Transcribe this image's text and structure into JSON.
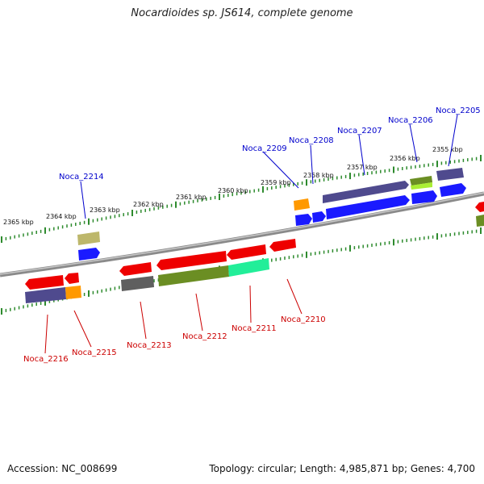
{
  "title": "Nocardioides sp. JS614, complete genome",
  "footer": {
    "accession": "Accession: NC_008699",
    "summary": "Topology: circular; Length: 4,985,871 bp; Genes: 4,700"
  },
  "colors": {
    "background": "#ffffff",
    "backbone": "#8a8a8a",
    "tick": "#2e8b2e",
    "label_forward": "#0000cc",
    "label_reverse": "#cc0000",
    "gene_red": "#ee0000",
    "gene_blue": "#1a1aff",
    "gene_orange": "#ff9900",
    "gene_slate": "#4f4a8e",
    "gene_olive": "#6b8e23",
    "gene_gray": "#5f5f5f",
    "gene_khaki": "#bdb76b",
    "gene_teal": "#22ee99",
    "gene_lime": "#aaee33"
  },
  "kbp_labels": [
    "2355 kbp",
    "2356 kbp",
    "2357 kbp",
    "2358 kbp",
    "2359 kbp",
    "2360 kbp",
    "2361 kbp",
    "2362 kbp",
    "2363 kbp",
    "2364 kbp",
    "2365 kbp"
  ],
  "gene_labels": {
    "forward": [
      "Noca_2205",
      "Noca_2206",
      "Noca_2207",
      "Noca_2208",
      "Noca_2209",
      "Noca_2214"
    ],
    "reverse": [
      "Noca_2210",
      "Noca_2211",
      "Noca_2212",
      "Noca_2213",
      "Noca_2215",
      "Noca_2216"
    ]
  }
}
